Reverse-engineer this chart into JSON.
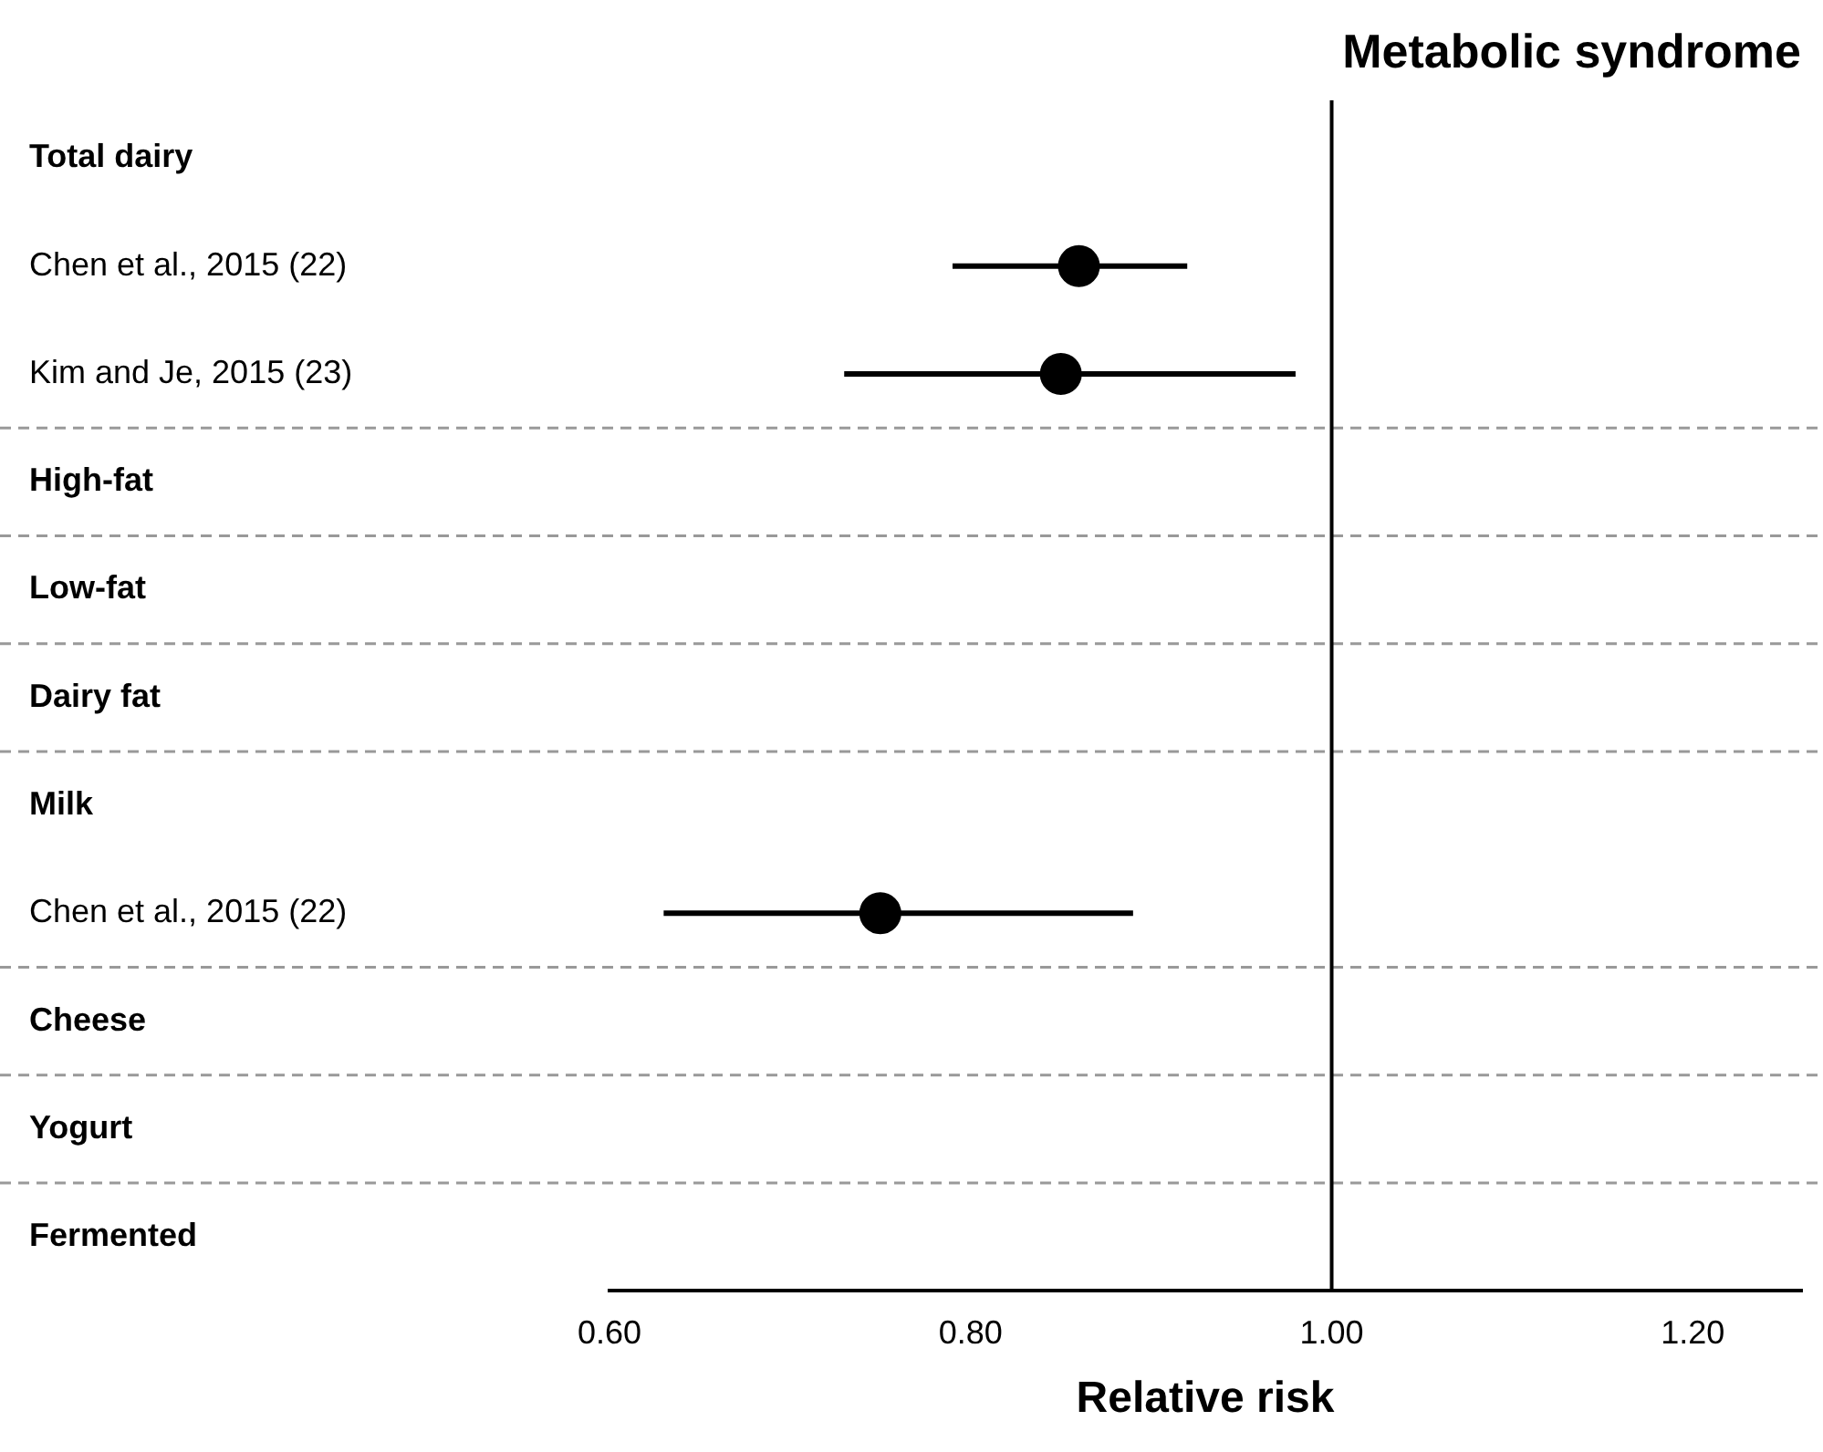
{
  "chart_data": {
    "type": "scatter",
    "orientation": "horizontal",
    "title": "Metabolic syndrome",
    "xlabel": "Relative risk",
    "categories": [
      "Total dairy",
      "Chen et al., 2015 (22)",
      "Kim and Je, 2015 (23)",
      "High-fat",
      "Low-fat",
      "Dairy fat",
      "Milk",
      "Chen et al., 2015 (22)",
      "Cheese",
      "Yogurt",
      "Fermented"
    ],
    "values": [
      null,
      0.86,
      0.85,
      null,
      null,
      null,
      null,
      0.75,
      null,
      null,
      null
    ],
    "errors": [
      null,
      [
        0.79,
        0.92
      ],
      [
        0.73,
        0.98
      ],
      null,
      null,
      null,
      null,
      [
        0.63,
        0.89
      ],
      null,
      null,
      null
    ],
    "color": "#000000",
    "marker": "circle",
    "xlim": [
      0.6,
      1.26
    ],
    "xticks": [
      {
        "value": 0.6,
        "label": "0.60"
      },
      {
        "value": 0.8,
        "label": "0.80"
      },
      {
        "value": 1.0,
        "label": "1.00"
      },
      {
        "value": 1.2,
        "label": "1.20"
      }
    ],
    "ref_lines": [
      {
        "axis": "x",
        "value": 1.0,
        "color": "#000000",
        "line_style": "solid"
      }
    ],
    "grid": false,
    "legend": false
  }
}
